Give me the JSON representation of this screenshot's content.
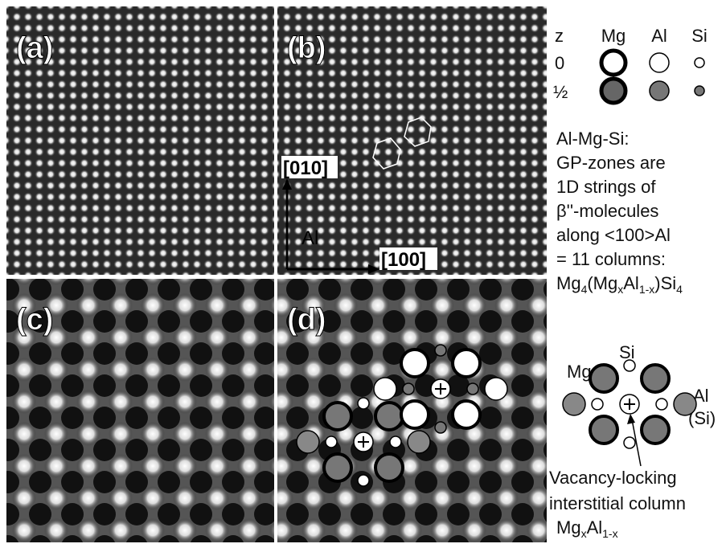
{
  "panels": {
    "a": "(a)",
    "b": "(b)",
    "c": "(c)",
    "d": "(d)"
  },
  "axes": {
    "y": "[010]",
    "x": "[100]",
    "host": "Al"
  },
  "legend": {
    "z_header": "z",
    "columns": [
      "Mg",
      "Al",
      "Si"
    ],
    "rows": [
      "0",
      "½"
    ]
  },
  "description": {
    "lines": [
      "Al-Mg-Si:",
      "GP-zones are",
      "1D strings of",
      "β''-molecules",
      "along <100>Al",
      "= 11 columns:"
    ],
    "formula": [
      "Mg",
      "4",
      "(Mg",
      "x",
      "Al",
      "1-x",
      ")Si",
      "4"
    ]
  },
  "schematic": {
    "mg": "Mg",
    "si": "Si",
    "al": "Al",
    "al_alt": "(Si)",
    "caption": [
      "Vacancy-locking",
      "interstitial column"
    ],
    "caption_formula": [
      "Mg",
      "x",
      "Al",
      "1-x"
    ]
  }
}
